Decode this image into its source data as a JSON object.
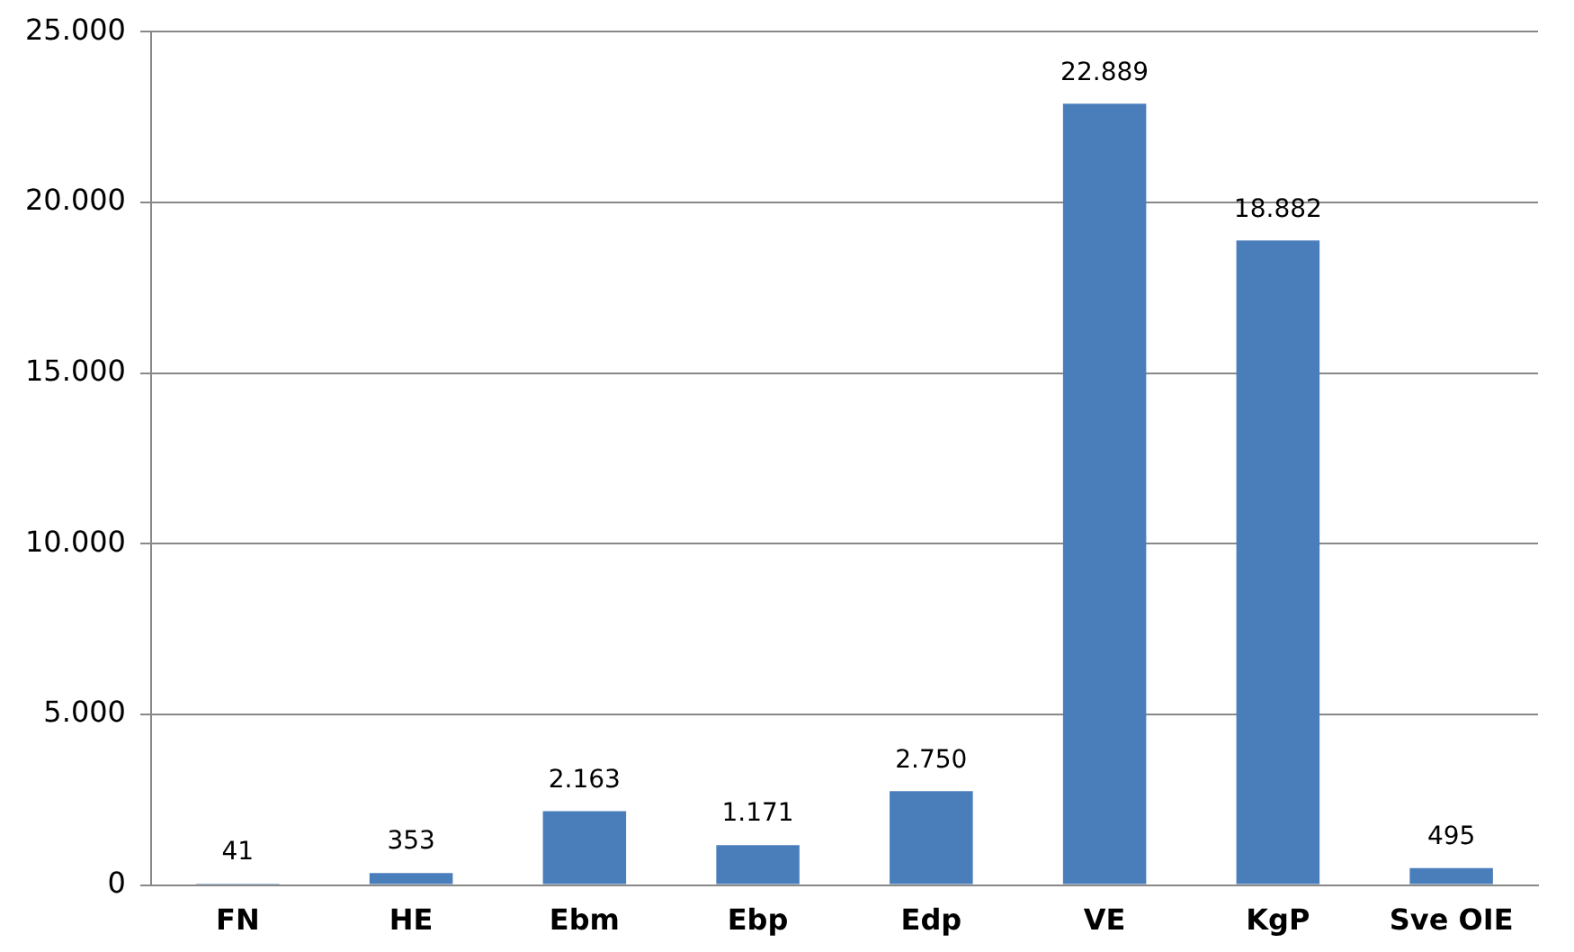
{
  "chart_data": {
    "type": "bar",
    "categories": [
      "FN",
      "HE",
      "Ebm",
      "Ebp",
      "Edp",
      "VE",
      "KgP",
      "Sve OIE"
    ],
    "values": [
      41,
      353,
      2163,
      1171,
      2750,
      22889,
      18882,
      495
    ],
    "value_labels": [
      "41",
      "353",
      "2.163",
      "1.171",
      "2.750",
      "22.889",
      "18.882",
      "495"
    ],
    "color": "#4a7ebb",
    "ylim": [
      0,
      25000
    ],
    "yticks": [
      0,
      {
        "value": 5000,
        "label": "5.000"
      },
      {
        "value": 10000,
        "label": "10.000"
      },
      {
        "value": 15000,
        "label": "15.000"
      },
      {
        "value": 20000,
        "label": "20.000"
      },
      {
        "value": 25000,
        "label": "25.000"
      }
    ],
    "grid": "y",
    "legend": false
  }
}
